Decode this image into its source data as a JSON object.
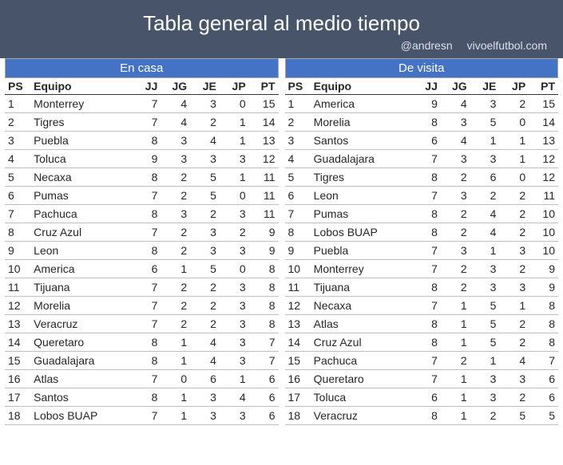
{
  "header": {
    "title": "Tabla general al medio tiempo",
    "credit_handle": "@andresn",
    "credit_site": "vivoelfutbol.com",
    "bg_color": "#47546a",
    "text_color": "#ffffff"
  },
  "columns": {
    "ps": "PS",
    "equipo": "Equipo",
    "jj": "JJ",
    "jg": "JG",
    "je": "JE",
    "jp": "JP",
    "pt": "PT"
  },
  "home": {
    "title": "En casa",
    "title_bg": "#4472c4",
    "rows": [
      {
        "ps": 1,
        "equipo": "Monterrey",
        "jj": 7,
        "jg": 4,
        "je": 3,
        "jp": 0,
        "pt": 15
      },
      {
        "ps": 2,
        "equipo": "Tigres",
        "jj": 7,
        "jg": 4,
        "je": 2,
        "jp": 1,
        "pt": 14
      },
      {
        "ps": 3,
        "equipo": "Puebla",
        "jj": 8,
        "jg": 3,
        "je": 4,
        "jp": 1,
        "pt": 13
      },
      {
        "ps": 4,
        "equipo": "Toluca",
        "jj": 9,
        "jg": 3,
        "je": 3,
        "jp": 3,
        "pt": 12
      },
      {
        "ps": 5,
        "equipo": "Necaxa",
        "jj": 8,
        "jg": 2,
        "je": 5,
        "jp": 1,
        "pt": 11
      },
      {
        "ps": 6,
        "equipo": "Pumas",
        "jj": 7,
        "jg": 2,
        "je": 5,
        "jp": 0,
        "pt": 11
      },
      {
        "ps": 7,
        "equipo": "Pachuca",
        "jj": 8,
        "jg": 3,
        "je": 2,
        "jp": 3,
        "pt": 11
      },
      {
        "ps": 8,
        "equipo": "Cruz Azul",
        "jj": 7,
        "jg": 2,
        "je": 3,
        "jp": 2,
        "pt": 9
      },
      {
        "ps": 9,
        "equipo": "Leon",
        "jj": 8,
        "jg": 2,
        "je": 3,
        "jp": 3,
        "pt": 9
      },
      {
        "ps": 10,
        "equipo": "America",
        "jj": 6,
        "jg": 1,
        "je": 5,
        "jp": 0,
        "pt": 8
      },
      {
        "ps": 11,
        "equipo": "Tijuana",
        "jj": 7,
        "jg": 2,
        "je": 2,
        "jp": 3,
        "pt": 8
      },
      {
        "ps": 12,
        "equipo": "Morelia",
        "jj": 7,
        "jg": 2,
        "je": 2,
        "jp": 3,
        "pt": 8
      },
      {
        "ps": 13,
        "equipo": "Veracruz",
        "jj": 7,
        "jg": 2,
        "je": 2,
        "jp": 3,
        "pt": 8
      },
      {
        "ps": 14,
        "equipo": "Queretaro",
        "jj": 8,
        "jg": 1,
        "je": 4,
        "jp": 3,
        "pt": 7
      },
      {
        "ps": 15,
        "equipo": "Guadalajara",
        "jj": 8,
        "jg": 1,
        "je": 4,
        "jp": 3,
        "pt": 7
      },
      {
        "ps": 16,
        "equipo": "Atlas",
        "jj": 7,
        "jg": 0,
        "je": 6,
        "jp": 1,
        "pt": 6
      },
      {
        "ps": 17,
        "equipo": "Santos",
        "jj": 8,
        "jg": 1,
        "je": 3,
        "jp": 4,
        "pt": 6
      },
      {
        "ps": 18,
        "equipo": "Lobos BUAP",
        "jj": 7,
        "jg": 1,
        "je": 3,
        "jp": 3,
        "pt": 6
      }
    ]
  },
  "away": {
    "title": "De visita",
    "title_bg": "#4472c4",
    "rows": [
      {
        "ps": 1,
        "equipo": "America",
        "jj": 9,
        "jg": 4,
        "je": 3,
        "jp": 2,
        "pt": 15
      },
      {
        "ps": 2,
        "equipo": "Morelia",
        "jj": 8,
        "jg": 3,
        "je": 5,
        "jp": 0,
        "pt": 14
      },
      {
        "ps": 3,
        "equipo": "Santos",
        "jj": 6,
        "jg": 4,
        "je": 1,
        "jp": 1,
        "pt": 13
      },
      {
        "ps": 4,
        "equipo": "Guadalajara",
        "jj": 7,
        "jg": 3,
        "je": 3,
        "jp": 1,
        "pt": 12
      },
      {
        "ps": 5,
        "equipo": "Tigres",
        "jj": 8,
        "jg": 2,
        "je": 6,
        "jp": 0,
        "pt": 12
      },
      {
        "ps": 6,
        "equipo": "Leon",
        "jj": 7,
        "jg": 3,
        "je": 2,
        "jp": 2,
        "pt": 11
      },
      {
        "ps": 7,
        "equipo": "Pumas",
        "jj": 8,
        "jg": 2,
        "je": 4,
        "jp": 2,
        "pt": 10
      },
      {
        "ps": 8,
        "equipo": "Lobos BUAP",
        "jj": 8,
        "jg": 2,
        "je": 4,
        "jp": 2,
        "pt": 10
      },
      {
        "ps": 9,
        "equipo": "Puebla",
        "jj": 7,
        "jg": 3,
        "je": 1,
        "jp": 3,
        "pt": 10
      },
      {
        "ps": 10,
        "equipo": "Monterrey",
        "jj": 7,
        "jg": 2,
        "je": 3,
        "jp": 2,
        "pt": 9
      },
      {
        "ps": 11,
        "equipo": "Tijuana",
        "jj": 8,
        "jg": 2,
        "je": 3,
        "jp": 3,
        "pt": 9
      },
      {
        "ps": 12,
        "equipo": "Necaxa",
        "jj": 7,
        "jg": 1,
        "je": 5,
        "jp": 1,
        "pt": 8
      },
      {
        "ps": 13,
        "equipo": "Atlas",
        "jj": 8,
        "jg": 1,
        "je": 5,
        "jp": 2,
        "pt": 8
      },
      {
        "ps": 14,
        "equipo": "Cruz Azul",
        "jj": 8,
        "jg": 1,
        "je": 5,
        "jp": 2,
        "pt": 8
      },
      {
        "ps": 15,
        "equipo": "Pachuca",
        "jj": 7,
        "jg": 2,
        "je": 1,
        "jp": 4,
        "pt": 7
      },
      {
        "ps": 16,
        "equipo": "Queretaro",
        "jj": 7,
        "jg": 1,
        "je": 3,
        "jp": 3,
        "pt": 6
      },
      {
        "ps": 17,
        "equipo": "Toluca",
        "jj": 6,
        "jg": 1,
        "je": 3,
        "jp": 2,
        "pt": 6
      },
      {
        "ps": 18,
        "equipo": "Veracruz",
        "jj": 8,
        "jg": 1,
        "je": 2,
        "jp": 5,
        "pt": 5
      }
    ]
  },
  "styling": {
    "row_border_color": "#bfbfbf",
    "header_border_color": "#333333",
    "font_family": "Arial",
    "font_size_body": 14,
    "font_size_title": 26
  }
}
